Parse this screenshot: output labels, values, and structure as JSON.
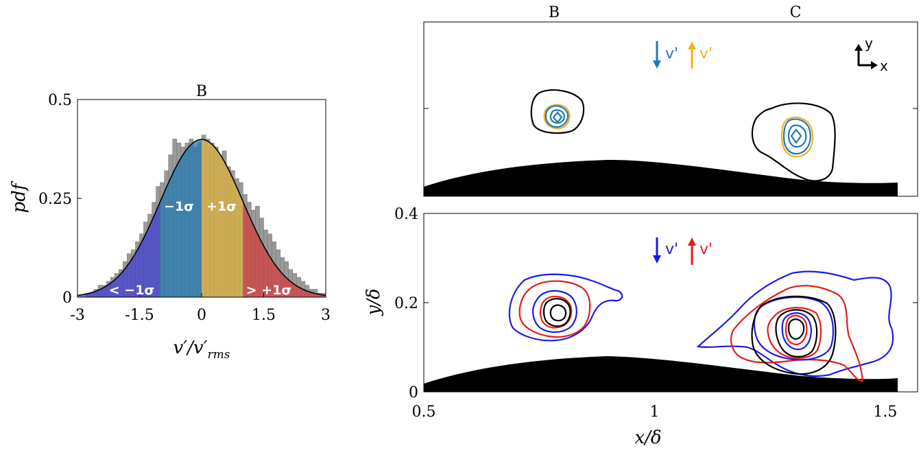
{
  "colors": {
    "hist_gray": "#9a9a9a",
    "fill_lt_neg1": "#3b3bd6",
    "fill_neg1_0": "#1f78b4",
    "fill_0_pos1": "#e0b33c",
    "fill_gt_pos1": "#d63b3b",
    "contour_blue_top": "#1f78b4",
    "contour_yellow": "#f0b020",
    "contour_blue_bottom": "#1a1ae6",
    "contour_red": "#e61a1a",
    "black": "#000000"
  },
  "chart_data": [
    {
      "type": "histogram",
      "title": "B",
      "xlabel": "v′/v′rms",
      "ylabel": "pdf",
      "xlim": [
        -3,
        3
      ],
      "ylim": [
        0,
        0.5
      ],
      "xticks": [
        "-3",
        "-1.5",
        "0",
        "1.5",
        "3"
      ],
      "yticks": [
        "0",
        "0.25",
        "0.5"
      ],
      "bin_edges_start": -3.0,
      "bin_width": 0.1,
      "bin_values": [
        0.0,
        0.0,
        0.01,
        0.01,
        0.02,
        0.03,
        0.03,
        0.04,
        0.05,
        0.06,
        0.07,
        0.09,
        0.11,
        0.12,
        0.14,
        0.16,
        0.19,
        0.21,
        0.24,
        0.28,
        0.29,
        0.32,
        0.36,
        0.4,
        0.39,
        0.38,
        0.39,
        0.4,
        0.38,
        0.39,
        0.41,
        0.4,
        0.39,
        0.38,
        0.36,
        0.37,
        0.33,
        0.32,
        0.3,
        0.29,
        0.26,
        0.24,
        0.22,
        0.23,
        0.2,
        0.17,
        0.16,
        0.14,
        0.12,
        0.1,
        0.09,
        0.07,
        0.06,
        0.05,
        0.04,
        0.03,
        0.02,
        0.02,
        0.01,
        0.01
      ],
      "curve": "standard normal pdf",
      "regions": [
        {
          "range": [
            -3,
            -1
          ],
          "label": "< −1σ"
        },
        {
          "range": [
            -1,
            0
          ],
          "label": "−1σ"
        },
        {
          "range": [
            0,
            1
          ],
          "label": "+1σ"
        },
        {
          "range": [
            1,
            3
          ],
          "label": "> +1σ"
        }
      ]
    },
    {
      "type": "contour",
      "column_labels": [
        "B",
        "C"
      ],
      "legend": [
        {
          "arrow": "↓",
          "label": "v'"
        },
        {
          "arrow": "↑",
          "label": "v'"
        }
      ],
      "axes_marker": {
        "x": "x",
        "y": "y"
      },
      "xlim": [
        0.5,
        1.57
      ],
      "ylim": [
        0,
        0.4
      ],
      "centers": [
        {
          "name": "B",
          "x": 0.8,
          "y": 0.18
        },
        {
          "name": "C",
          "x": 1.33,
          "y": 0.15
        }
      ]
    },
    {
      "type": "contour",
      "xlabel": "x/δ",
      "ylabel": "y/δ",
      "xlim": [
        0.5,
        1.57
      ],
      "ylim": [
        0,
        0.4
      ],
      "xticks": [
        "0.5",
        "1",
        "1.5"
      ],
      "yticks": [
        "0",
        "0.2",
        "0.4"
      ],
      "legend": [
        {
          "arrow": "↓",
          "label": "v'"
        },
        {
          "arrow": "↑",
          "label": "v'"
        }
      ],
      "centers": [
        {
          "name": "B",
          "x": 0.8,
          "y": 0.18
        },
        {
          "name": "C",
          "x": 1.33,
          "y": 0.14
        }
      ]
    }
  ]
}
